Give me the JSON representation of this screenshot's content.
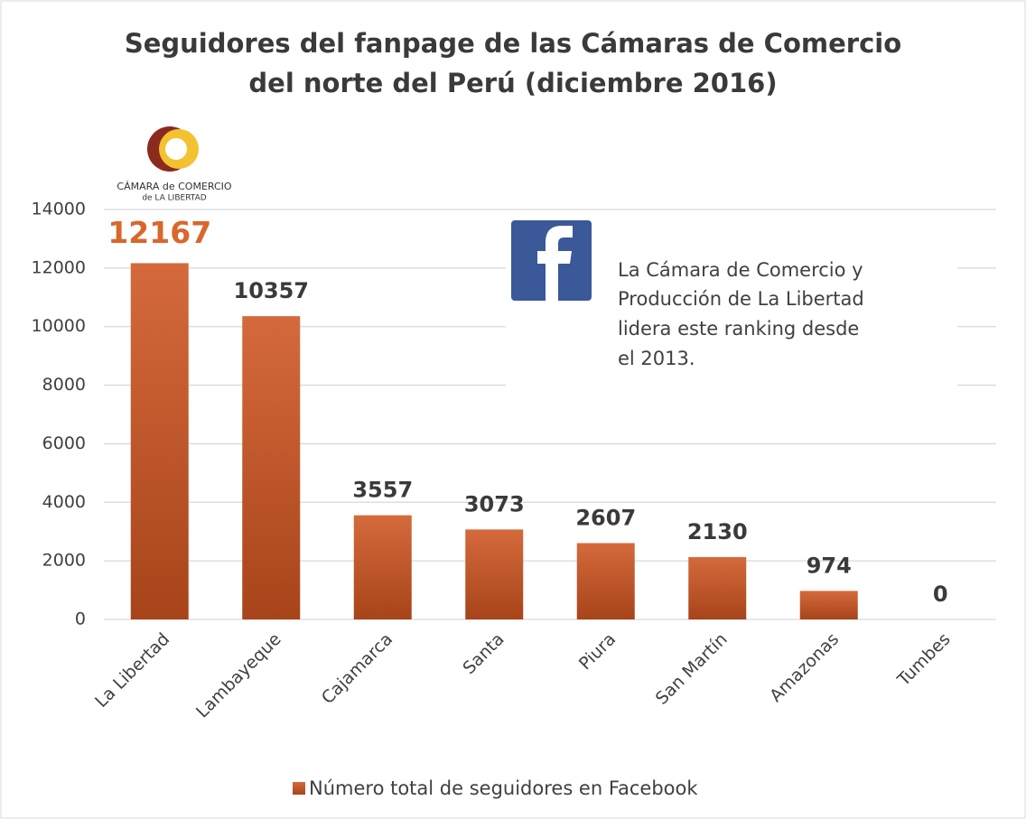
{
  "chart_data": {
    "type": "bar",
    "title": [
      "Seguidores del fanpage de las Cámaras de Comercio",
      "del norte del Perú (diciembre 2016)"
    ],
    "logo": [
      "CÁMARA de COMERCIO",
      "de LA LIBERTAD"
    ],
    "annotation": [
      "La Cámara de Comercio y",
      "Producción de La Libertad",
      "lidera este ranking desde",
      "el 2013."
    ],
    "categories": [
      "La Libertad",
      "Lambayeque",
      "Cajamarca",
      "Santa",
      "Piura",
      "San Martín",
      "Amazonas",
      "Tumbes"
    ],
    "series": [
      {
        "name": "Número total de seguidores en Facebook",
        "color": "#d46a3c",
        "values": [
          12167,
          10357,
          3557,
          3073,
          2607,
          2130,
          974,
          0
        ]
      }
    ],
    "ylim": [
      0,
      14000
    ],
    "yticks": [
      0,
      2000,
      4000,
      6000,
      8000,
      10000,
      12000,
      14000
    ],
    "grid": true,
    "legend": "bottom"
  }
}
